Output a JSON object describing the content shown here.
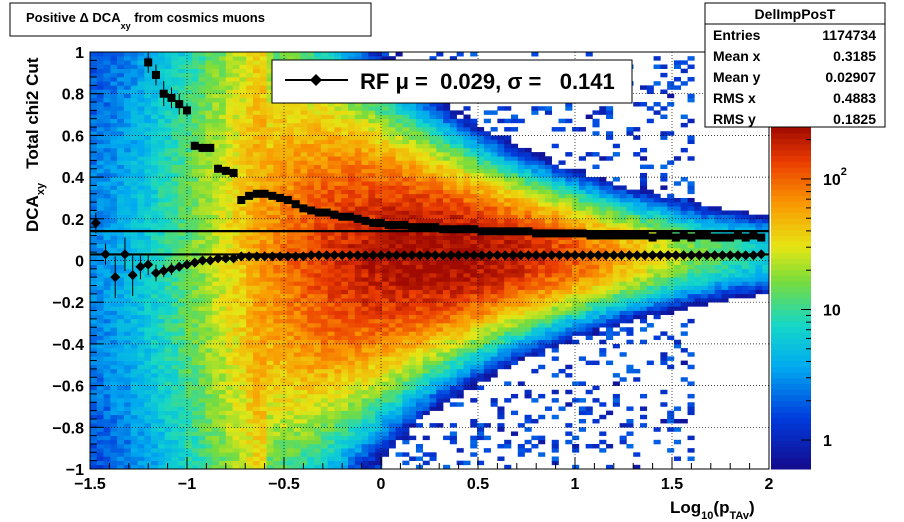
{
  "title": {
    "main": "Positive Δ DCA",
    "sub": "xy",
    "tail": " from cosmics muons"
  },
  "stats": {
    "name": "DelImpPosT",
    "rows": [
      {
        "label": "Entries",
        "value": "1174734"
      },
      {
        "label": "Mean x",
        "value": "0.3185"
      },
      {
        "label": "Mean y",
        "value": "0.02907"
      },
      {
        "label": "RMS x",
        "value": "0.4883"
      },
      {
        "label": "RMS y",
        "value": "0.1825"
      }
    ]
  },
  "legend": {
    "text": "RF μ =  0.029, σ =   0.141"
  },
  "axes": {
    "x": {
      "label_main": "Log",
      "label_sub1": "10",
      "label_mid": "(p",
      "label_sub2": "TAv",
      "label_end": ")",
      "range": [
        -1.5,
        2
      ],
      "ticks": [
        {
          "v": -1.5,
          "t": "−1.5"
        },
        {
          "v": -1,
          "t": "−1"
        },
        {
          "v": -0.5,
          "t": "−0.5"
        },
        {
          "v": 0,
          "t": "0"
        },
        {
          "v": 0.5,
          "t": "0.5"
        },
        {
          "v": 1,
          "t": "1"
        },
        {
          "v": 1.5,
          "t": "1.5"
        },
        {
          "v": 2,
          "t": "2"
        }
      ]
    },
    "y": {
      "label_main": "DCA",
      "label_sub": "xy",
      "label_tail": "   Total chi2 Cut",
      "range": [
        -1,
        1
      ],
      "ticks": [
        {
          "v": -1,
          "t": "−1"
        },
        {
          "v": -0.8,
          "t": "−0.8"
        },
        {
          "v": -0.6,
          "t": "−0.6"
        },
        {
          "v": -0.4,
          "t": "−0.4"
        },
        {
          "v": -0.2,
          "t": "−0.2"
        },
        {
          "v": 0,
          "t": "0"
        },
        {
          "v": 0.2,
          "t": "0.2"
        },
        {
          "v": 0.4,
          "t": "0.4"
        },
        {
          "v": 0.6,
          "t": "0.6"
        },
        {
          "v": 0.8,
          "t": "0.8"
        },
        {
          "v": 1,
          "t": "1"
        }
      ]
    },
    "z": {
      "scale": "log",
      "range": [
        0.6,
        250
      ],
      "ticks": [
        {
          "v": 1,
          "t": "1"
        },
        {
          "v": 10,
          "t": "10"
        },
        {
          "v": 100,
          "t": "10",
          "sup": "2"
        }
      ]
    }
  },
  "chart_data": {
    "type": "heatmap",
    "grid": true,
    "colormap": "rainbow",
    "x_range": [
      -1.5,
      2
    ],
    "y_range": [
      -1,
      1
    ],
    "z_scale": "log",
    "fit_line": {
      "y": 0.029,
      "x_range": [
        -1.5,
        2
      ]
    },
    "sigma_line": {
      "y": 0.141,
      "x_range": [
        -1.5,
        2
      ]
    },
    "mean_series": {
      "x": [
        -1.47,
        -1.42,
        -1.37,
        -1.32,
        -1.28,
        -1.24,
        -1.2,
        -1.16,
        -1.12,
        -1.08,
        -1.04,
        -1.0,
        -0.96,
        -0.92,
        -0.88,
        -0.84,
        -0.8,
        -0.76,
        -0.72,
        -0.68,
        -0.64,
        -0.6,
        -0.56,
        -0.52,
        -0.48,
        -0.44,
        -0.4,
        -0.36,
        -0.32,
        -0.28,
        -0.24,
        -0.2,
        -0.16,
        -0.12,
        -0.08,
        -0.04,
        0.0,
        0.04,
        0.08,
        0.12,
        0.16,
        0.2,
        0.24,
        0.28,
        0.32,
        0.36,
        0.4,
        0.44,
        0.48,
        0.52,
        0.56,
        0.6,
        0.64,
        0.68,
        0.72,
        0.76,
        0.8,
        0.84,
        0.88,
        0.92,
        0.96,
        1.0,
        1.04,
        1.08,
        1.12,
        1.16,
        1.2,
        1.24,
        1.28,
        1.32,
        1.36,
        1.4,
        1.44,
        1.48,
        1.52,
        1.56,
        1.6,
        1.64,
        1.68,
        1.72,
        1.76,
        1.8,
        1.84,
        1.88,
        1.92,
        1.96
      ],
      "y": [
        0.18,
        0.03,
        -0.08,
        0.03,
        -0.07,
        -0.03,
        -0.02,
        -0.06,
        -0.05,
        -0.04,
        -0.03,
        -0.02,
        -0.01,
        0.0,
        0.0,
        0.01,
        0.01,
        0.01,
        0.02,
        0.02,
        0.02,
        0.02,
        0.02,
        0.02,
        0.02,
        0.02,
        0.02,
        0.025,
        0.025,
        0.025,
        0.025,
        0.025,
        0.025,
        0.025,
        0.025,
        0.025,
        0.025,
        0.025,
        0.025,
        0.025,
        0.025,
        0.025,
        0.025,
        0.025,
        0.025,
        0.025,
        0.025,
        0.025,
        0.025,
        0.025,
        0.025,
        0.025,
        0.025,
        0.025,
        0.025,
        0.025,
        0.025,
        0.025,
        0.025,
        0.025,
        0.025,
        0.025,
        0.025,
        0.025,
        0.025,
        0.025,
        0.025,
        0.025,
        0.025,
        0.025,
        0.025,
        0.025,
        0.025,
        0.025,
        0.025,
        0.025,
        0.025,
        0.025,
        0.025,
        0.025,
        0.025,
        0.025,
        0.025,
        0.025,
        0.025,
        0.03
      ],
      "err": [
        0.05,
        0.05,
        0.1,
        0.08,
        0.1,
        0.06,
        0.05,
        0.04,
        0.03,
        0.03,
        0.02,
        0.02,
        0.02,
        0.01,
        0.01,
        0.01,
        0.01,
        0.01,
        0,
        0,
        0,
        0,
        0,
        0,
        0,
        0,
        0,
        0,
        0,
        0,
        0,
        0,
        0,
        0,
        0,
        0,
        0,
        0,
        0,
        0,
        0,
        0,
        0,
        0,
        0,
        0,
        0,
        0,
        0,
        0,
        0,
        0,
        0,
        0,
        0,
        0,
        0,
        0,
        0,
        0,
        0,
        0,
        0,
        0,
        0,
        0,
        0,
        0,
        0,
        0,
        0,
        0,
        0,
        0,
        0,
        0,
        0,
        0,
        0,
        0,
        0,
        0,
        0,
        0,
        0,
        0
      ]
    },
    "sigma_series": {
      "x": [
        -1.2,
        -1.16,
        -1.12,
        -1.08,
        -1.04,
        -1.0,
        -0.96,
        -0.92,
        -0.88,
        -0.84,
        -0.8,
        -0.76,
        -0.72,
        -0.68,
        -0.64,
        -0.6,
        -0.56,
        -0.52,
        -0.48,
        -0.44,
        -0.4,
        -0.36,
        -0.32,
        -0.28,
        -0.24,
        -0.2,
        -0.16,
        -0.12,
        -0.08,
        -0.04,
        0.0,
        0.04,
        0.08,
        0.12,
        0.16,
        0.2,
        0.24,
        0.28,
        0.32,
        0.36,
        0.4,
        0.44,
        0.48,
        0.52,
        0.56,
        0.6,
        0.64,
        0.68,
        0.72,
        0.76,
        0.8,
        0.84,
        0.88,
        0.92,
        0.96,
        1.0,
        1.04,
        1.08,
        1.12,
        1.16,
        1.2,
        1.24,
        1.28,
        1.32,
        1.36,
        1.4,
        1.44,
        1.48,
        1.52,
        1.56,
        1.6,
        1.64,
        1.68,
        1.72,
        1.76,
        1.8,
        1.84,
        1.88,
        1.92,
        1.96
      ],
      "y": [
        0.95,
        0.89,
        0.8,
        0.78,
        0.75,
        0.72,
        0.55,
        0.54,
        0.54,
        0.44,
        0.43,
        0.42,
        0.29,
        0.31,
        0.32,
        0.32,
        0.31,
        0.3,
        0.29,
        0.27,
        0.25,
        0.24,
        0.23,
        0.23,
        0.22,
        0.21,
        0.21,
        0.2,
        0.19,
        0.18,
        0.18,
        0.17,
        0.17,
        0.17,
        0.16,
        0.16,
        0.16,
        0.16,
        0.15,
        0.15,
        0.15,
        0.15,
        0.15,
        0.14,
        0.14,
        0.14,
        0.14,
        0.14,
        0.14,
        0.14,
        0.13,
        0.13,
        0.13,
        0.13,
        0.13,
        0.13,
        0.13,
        0.12,
        0.12,
        0.12,
        0.12,
        0.12,
        0.12,
        0.12,
        0.12,
        0.11,
        0.12,
        0.12,
        0.11,
        0.12,
        0.11,
        0.12,
        0.12,
        0.11,
        0.11,
        0.11,
        0.12,
        0.11,
        0.12,
        0.11
      ],
      "err": [
        0.05,
        0.05,
        0.06,
        0.05,
        0.05,
        0.03,
        0.02,
        0.02,
        0.02,
        0.02,
        0.02,
        0.02,
        0.01,
        0.01,
        0.01,
        0.01,
        0,
        0,
        0,
        0,
        0,
        0,
        0,
        0,
        0,
        0,
        0,
        0,
        0,
        0,
        0,
        0,
        0,
        0,
        0,
        0,
        0,
        0,
        0,
        0,
        0,
        0,
        0,
        0,
        0,
        0,
        0,
        0,
        0,
        0,
        0,
        0,
        0,
        0,
        0,
        0,
        0,
        0,
        0,
        0,
        0,
        0,
        0,
        0,
        0,
        0,
        0,
        0,
        0,
        0,
        0,
        0,
        0,
        0,
        0,
        0,
        0,
        0,
        0,
        0
      ]
    }
  }
}
